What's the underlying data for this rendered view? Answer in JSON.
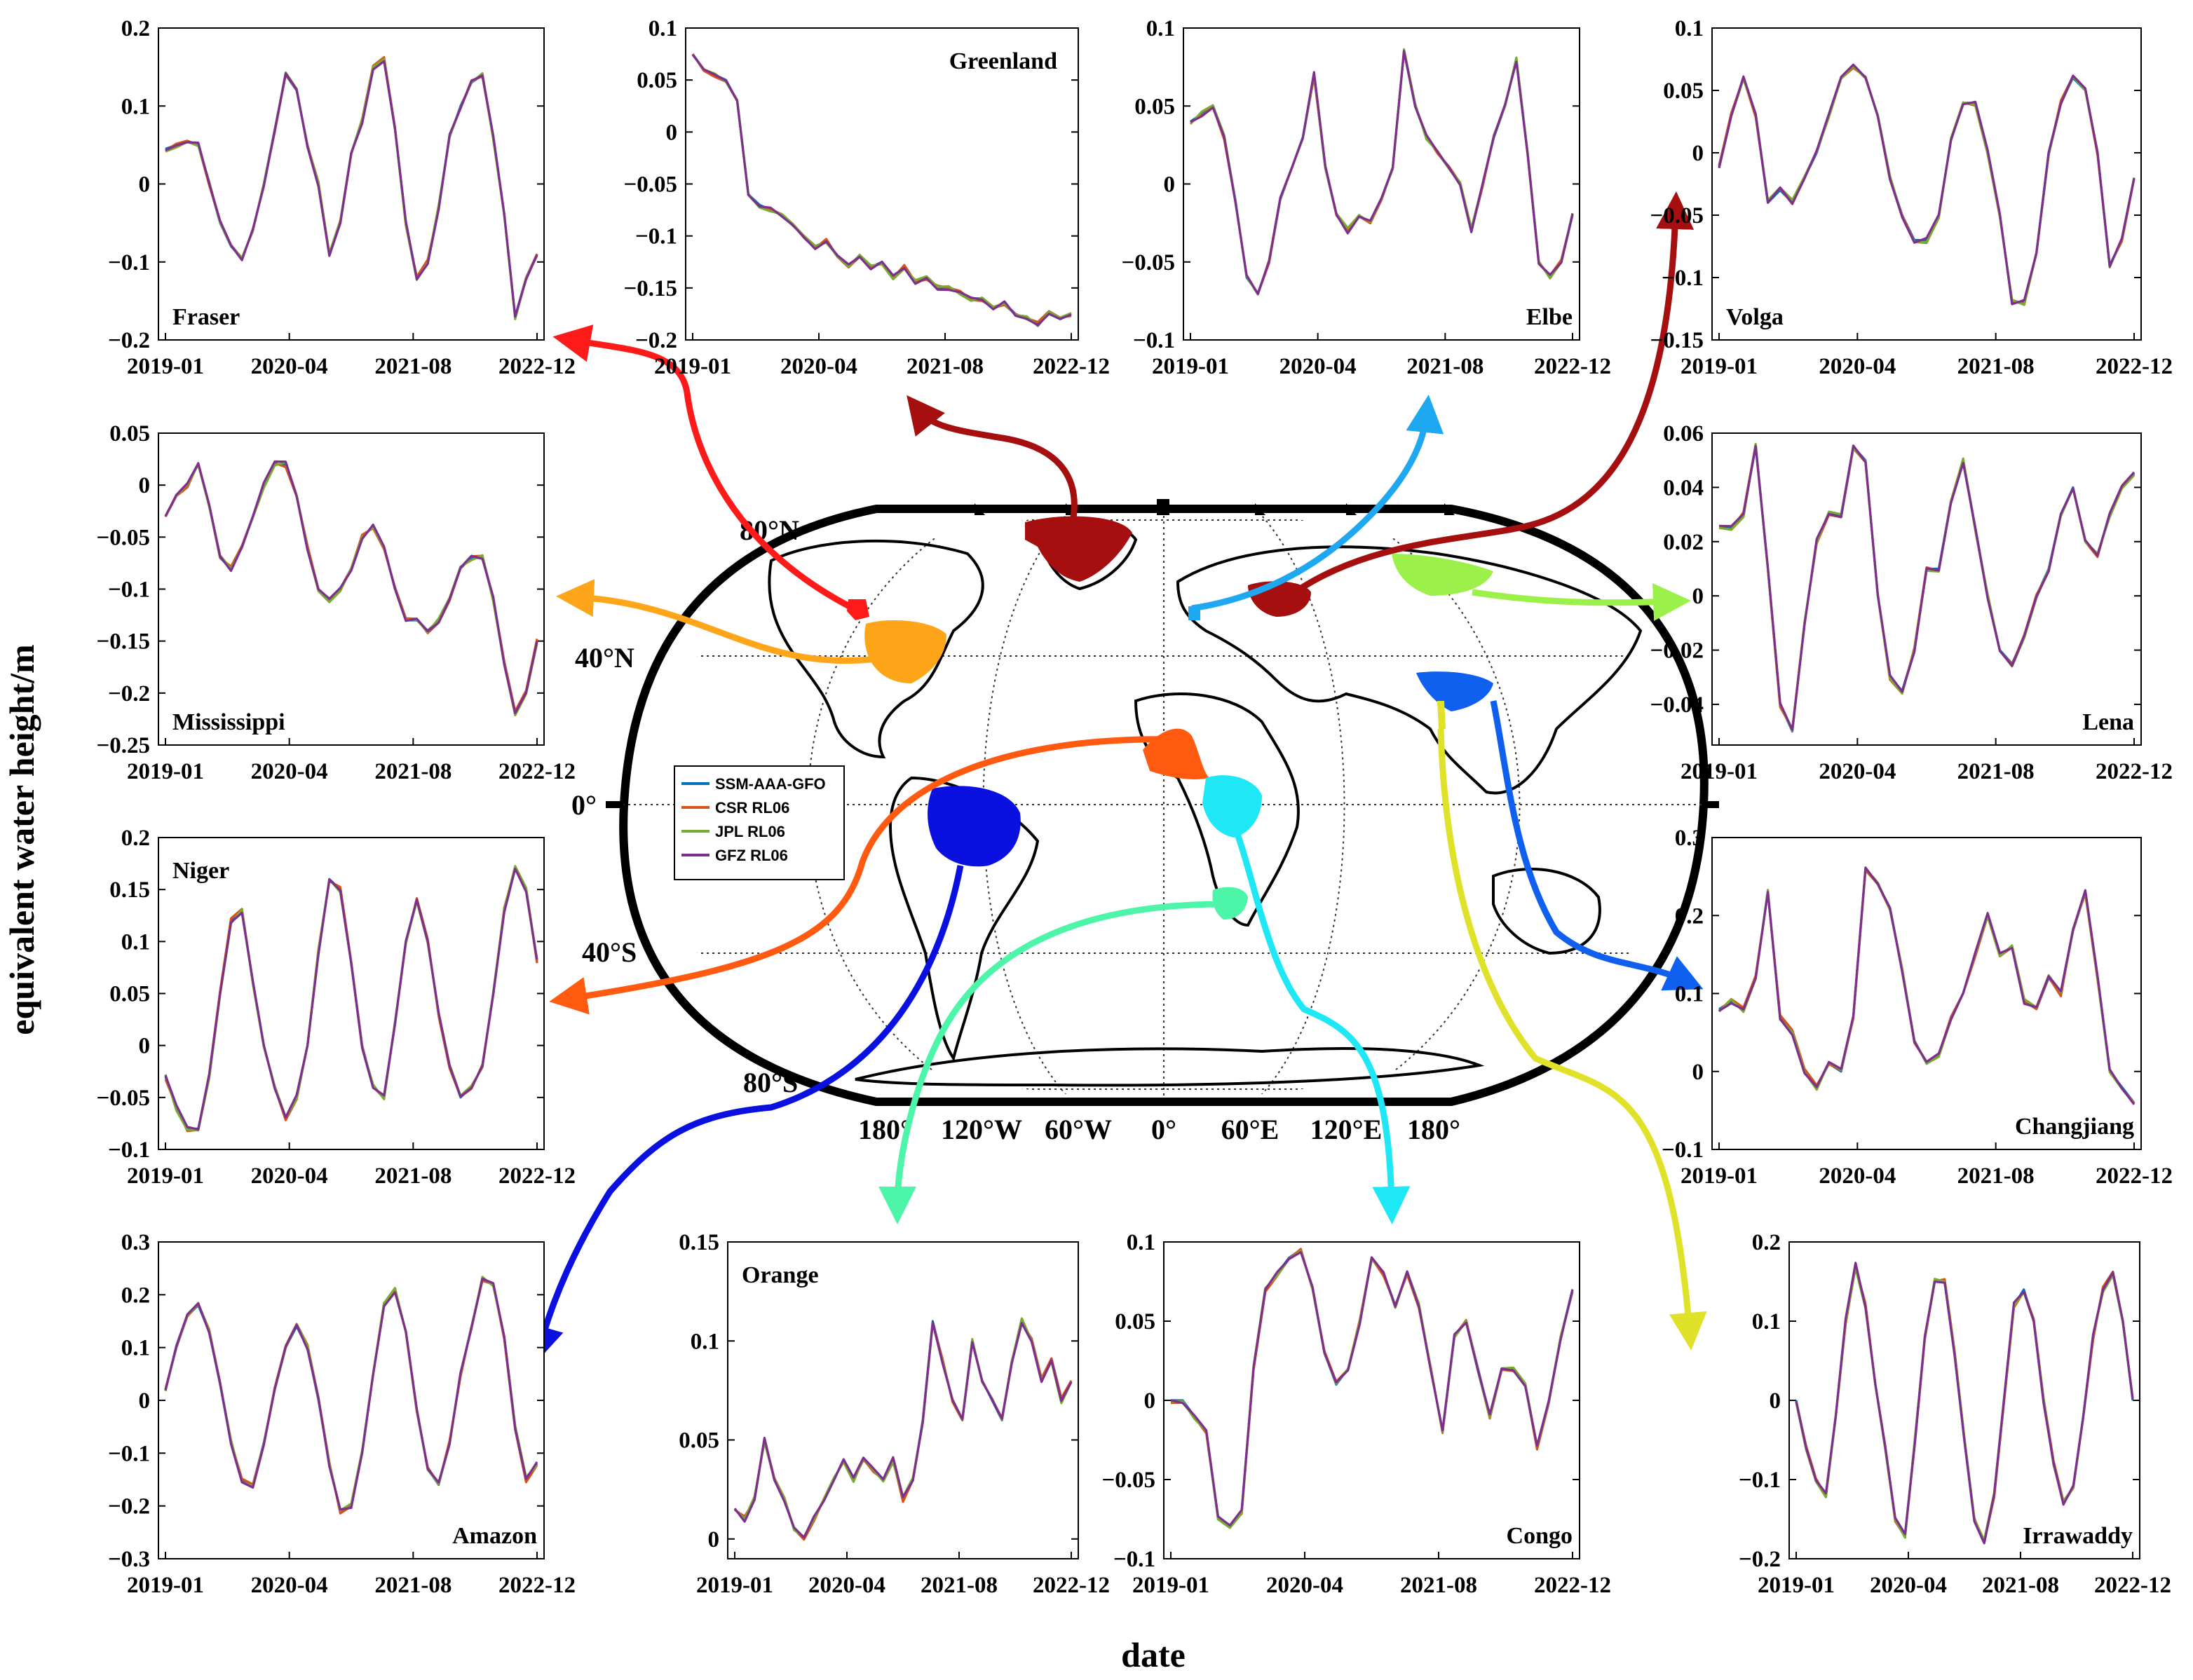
{
  "figure": {
    "ylabel": "equivalent water height/m",
    "xlabel": "date"
  },
  "legend": [
    {
      "name": "SSM-AAA-GFO",
      "color": "#0072BD"
    },
    {
      "name": "CSR RL06",
      "color": "#D95319"
    },
    {
      "name": "JPL RL06",
      "color": "#77AC30"
    },
    {
      "name": "GFZ RL06",
      "color": "#7E2F8E"
    }
  ],
  "map": {
    "lat_labels": [
      "80°N",
      "40°N",
      "0°",
      "40°S",
      "80°S"
    ],
    "lon_labels": [
      "180°",
      "120°W",
      "60°W",
      "0°",
      "60°E",
      "120°E",
      "180°"
    ]
  },
  "chart_data": [
    {
      "type": "line",
      "title": "Fraser",
      "title_pos": "bottom-left",
      "xticks": [
        "2019-01",
        "2020-04",
        "2021-08",
        "2022-12"
      ],
      "yticks": [
        "0.2",
        "0.1",
        "0",
        "−0.1",
        "−0.2"
      ],
      "ylim": [
        -0.2,
        0.2
      ],
      "values": [
        0.045,
        0.05,
        0.055,
        0.05,
        0.0,
        -0.05,
        -0.08,
        -0.095,
        -0.06,
        0.0,
        0.07,
        0.14,
        0.12,
        0.05,
        0.0,
        -0.09,
        -0.05,
        0.04,
        0.08,
        0.15,
        0.16,
        0.07,
        -0.05,
        -0.12,
        -0.1,
        -0.03,
        0.06,
        0.1,
        0.13,
        0.14,
        0.06,
        -0.04,
        -0.17,
        -0.12,
        -0.09
      ]
    },
    {
      "type": "line",
      "title": "Greenland",
      "title_pos": "top-right",
      "xticks": [
        "2019-01",
        "2020-04",
        "2021-08",
        "2022-12"
      ],
      "yticks": [
        "0.1",
        "0.05",
        "0",
        "−0.05",
        "−0.1",
        "−0.15",
        "−0.2"
      ],
      "ylim": [
        -0.2,
        0.1
      ],
      "values": [
        0.075,
        0.06,
        0.055,
        0.05,
        0.03,
        -0.06,
        -0.07,
        -0.075,
        -0.08,
        -0.09,
        -0.1,
        -0.11,
        -0.105,
        -0.12,
        -0.13,
        -0.12,
        -0.13,
        -0.125,
        -0.14,
        -0.13,
        -0.145,
        -0.14,
        -0.15,
        -0.15,
        -0.155,
        -0.16,
        -0.16,
        -0.17,
        -0.165,
        -0.175,
        -0.18,
        -0.185,
        -0.175,
        -0.18,
        -0.175
      ]
    },
    {
      "type": "line",
      "title": "Elbe",
      "title_pos": "bottom-right",
      "xticks": [
        "2019-01",
        "2020-04",
        "2021-08",
        "2022-12"
      ],
      "yticks": [
        "0.1",
        "0.05",
        "0",
        "−0.05",
        "−0.1"
      ],
      "ylim": [
        -0.1,
        0.1
      ],
      "values": [
        0.04,
        0.045,
        0.05,
        0.03,
        -0.01,
        -0.06,
        -0.07,
        -0.05,
        -0.01,
        0.01,
        0.03,
        0.07,
        0.01,
        -0.02,
        -0.03,
        -0.02,
        -0.025,
        -0.01,
        0.01,
        0.085,
        0.05,
        0.03,
        0.02,
        0.01,
        0.0,
        -0.03,
        0.0,
        0.03,
        0.05,
        0.08,
        0.02,
        -0.05,
        -0.06,
        -0.05,
        -0.02
      ]
    },
    {
      "type": "line",
      "title": "Volga",
      "title_pos": "bottom-left",
      "xticks": [
        "2019-01",
        "2020-04",
        "2021-08",
        "2022-12"
      ],
      "yticks": [
        "0.1",
        "0.05",
        "0",
        "−0.05",
        "−0.1",
        "−0.15"
      ],
      "ylim": [
        -0.15,
        0.1
      ],
      "values": [
        -0.01,
        0.03,
        0.06,
        0.03,
        -0.04,
        -0.03,
        -0.04,
        -0.02,
        0.0,
        0.03,
        0.06,
        0.07,
        0.06,
        0.03,
        -0.02,
        -0.05,
        -0.07,
        -0.07,
        -0.05,
        0.01,
        0.04,
        0.04,
        0.0,
        -0.05,
        -0.12,
        -0.12,
        -0.08,
        0.0,
        0.04,
        0.06,
        0.05,
        0.0,
        -0.09,
        -0.07,
        -0.02
      ]
    },
    {
      "type": "line",
      "title": "Mississippi",
      "title_pos": "bottom-left",
      "xticks": [
        "2019-01",
        "2020-04",
        "2021-08",
        "2022-12"
      ],
      "yticks": [
        "0.05",
        "0",
        "−0.05",
        "−0.1",
        "−0.15",
        "−0.2",
        "−0.25"
      ],
      "ylim": [
        -0.25,
        0.05
      ],
      "values": [
        -0.03,
        -0.01,
        0.0,
        0.02,
        -0.02,
        -0.07,
        -0.08,
        -0.06,
        -0.03,
        0.0,
        0.02,
        0.02,
        -0.01,
        -0.06,
        -0.1,
        -0.11,
        -0.1,
        -0.08,
        -0.05,
        -0.04,
        -0.06,
        -0.1,
        -0.13,
        -0.13,
        -0.14,
        -0.13,
        -0.11,
        -0.08,
        -0.07,
        -0.07,
        -0.11,
        -0.17,
        -0.22,
        -0.2,
        -0.15
      ]
    },
    {
      "type": "line",
      "title": "Lena",
      "title_pos": "bottom-right",
      "xticks": [
        "2019-01",
        "2020-04",
        "2021-08",
        "2022-12"
      ],
      "yticks": [
        "0.06",
        "0.04",
        "0.02",
        "0",
        "−0.02",
        "−0.04"
      ],
      "ylim": [
        -0.055,
        0.06
      ],
      "values": [
        0.025,
        0.025,
        0.03,
        0.055,
        0.01,
        -0.04,
        -0.05,
        -0.01,
        0.02,
        0.03,
        0.03,
        0.055,
        0.05,
        0.0,
        -0.03,
        -0.035,
        -0.02,
        0.01,
        0.01,
        0.035,
        0.05,
        0.025,
        0.0,
        -0.02,
        -0.025,
        -0.015,
        0.0,
        0.01,
        0.03,
        0.04,
        0.02,
        0.015,
        0.03,
        0.04,
        0.045
      ]
    },
    {
      "type": "line",
      "title": "Niger",
      "title_pos": "top-left",
      "xticks": [
        "2019-01",
        "2020-04",
        "2021-08",
        "2022-12"
      ],
      "yticks": [
        "0.2",
        "0.15",
        "0.1",
        "0.05",
        "0",
        "−0.05",
        "−0.1"
      ],
      "ylim": [
        -0.1,
        0.2
      ],
      "values": [
        -0.03,
        -0.06,
        -0.08,
        -0.08,
        -0.03,
        0.05,
        0.12,
        0.13,
        0.06,
        0.0,
        -0.04,
        -0.07,
        -0.05,
        0.0,
        0.09,
        0.16,
        0.15,
        0.08,
        0.0,
        -0.04,
        -0.05,
        0.02,
        0.1,
        0.14,
        0.1,
        0.03,
        -0.02,
        -0.05,
        -0.04,
        -0.02,
        0.05,
        0.13,
        0.17,
        0.15,
        0.08
      ]
    },
    {
      "type": "line",
      "title": "Changjiang",
      "title_pos": "bottom-right",
      "xticks": [
        "2019-01",
        "2020-04",
        "2021-08",
        "2022-12"
      ],
      "yticks": [
        "0.3",
        "0.2",
        "0.1",
        "0",
        "−0.1"
      ],
      "ylim": [
        -0.1,
        0.3
      ],
      "values": [
        0.08,
        0.09,
        0.08,
        0.12,
        0.23,
        0.07,
        0.05,
        0.0,
        -0.02,
        0.01,
        0.0,
        0.07,
        0.26,
        0.24,
        0.21,
        0.13,
        0.04,
        0.01,
        0.02,
        0.07,
        0.1,
        0.15,
        0.2,
        0.15,
        0.16,
        0.09,
        0.08,
        0.12,
        0.1,
        0.18,
        0.23,
        0.12,
        0.0,
        -0.02,
        -0.04
      ]
    },
    {
      "type": "line",
      "title": "Amazon",
      "title_pos": "bottom-right",
      "xticks": [
        "2019-01",
        "2020-04",
        "2021-08",
        "2022-12"
      ],
      "yticks": [
        "0.3",
        "0.2",
        "0.1",
        "0",
        "−0.1",
        "−0.2",
        "−0.3"
      ],
      "ylim": [
        -0.3,
        0.3
      ],
      "values": [
        0.02,
        0.1,
        0.16,
        0.18,
        0.13,
        0.03,
        -0.08,
        -0.15,
        -0.16,
        -0.08,
        0.02,
        0.1,
        0.14,
        0.1,
        0.0,
        -0.12,
        -0.21,
        -0.2,
        -0.1,
        0.05,
        0.18,
        0.21,
        0.13,
        -0.02,
        -0.13,
        -0.16,
        -0.08,
        0.05,
        0.14,
        0.23,
        0.22,
        0.12,
        -0.05,
        -0.15,
        -0.12
      ]
    },
    {
      "type": "line",
      "title": "Orange",
      "title_pos": "top-left",
      "xticks": [
        "2019-01",
        "2020-04",
        "2021-08",
        "2022-12"
      ],
      "yticks": [
        "0.15",
        "0.1",
        "0.05",
        "0"
      ],
      "ylim": [
        -0.01,
        0.15
      ],
      "values": [
        0.015,
        0.01,
        0.02,
        0.05,
        0.03,
        0.02,
        0.005,
        0.0,
        0.01,
        0.02,
        0.03,
        0.04,
        0.03,
        0.04,
        0.035,
        0.03,
        0.04,
        0.02,
        0.03,
        0.06,
        0.11,
        0.09,
        0.07,
        0.06,
        0.1,
        0.08,
        0.07,
        0.06,
        0.09,
        0.11,
        0.1,
        0.08,
        0.09,
        0.07,
        0.08
      ]
    },
    {
      "type": "line",
      "title": "Congo",
      "title_pos": "bottom-right",
      "xticks": [
        "2019-01",
        "2020-04",
        "2021-08",
        "2022-12"
      ],
      "yticks": [
        "0.1",
        "0.05",
        "0",
        "−0.05",
        "−0.1"
      ],
      "ylim": [
        -0.1,
        0.1
      ],
      "values": [
        0.0,
        0.0,
        -0.01,
        -0.02,
        -0.075,
        -0.08,
        -0.07,
        0.02,
        0.07,
        0.08,
        0.09,
        0.095,
        0.07,
        0.03,
        0.01,
        0.02,
        0.05,
        0.09,
        0.08,
        0.06,
        0.08,
        0.06,
        0.02,
        -0.02,
        0.04,
        0.05,
        0.02,
        -0.01,
        0.02,
        0.02,
        0.01,
        -0.03,
        0.0,
        0.04,
        0.07
      ]
    },
    {
      "type": "line",
      "title": "Irrawaddy",
      "title_pos": "bottom-right",
      "xticks": [
        "2019-01",
        "2020-04",
        "2021-08",
        "2022-12"
      ],
      "yticks": [
        "0.2",
        "0.1",
        "0",
        "−0.1",
        "−0.2"
      ],
      "ylim": [
        -0.2,
        0.2
      ],
      "values": [
        0.0,
        -0.06,
        -0.1,
        -0.12,
        -0.02,
        0.1,
        0.17,
        0.12,
        0.02,
        -0.06,
        -0.15,
        -0.17,
        -0.05,
        0.08,
        0.15,
        0.15,
        0.06,
        -0.05,
        -0.15,
        -0.18,
        -0.12,
        0.0,
        0.12,
        0.14,
        0.1,
        0.0,
        -0.08,
        -0.13,
        -0.11,
        -0.02,
        0.08,
        0.14,
        0.16,
        0.1,
        0.0
      ]
    }
  ]
}
